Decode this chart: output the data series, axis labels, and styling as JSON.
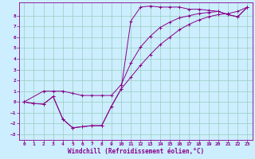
{
  "xlabel": "Windchill (Refroidissement éolien,°C)",
  "bg_color": "#cceeff",
  "grid_color": "#99ccbb",
  "line_color": "#880088",
  "spine_color": "#880088",
  "xlim": [
    -0.5,
    23.5
  ],
  "ylim": [
    -3.5,
    9.2
  ],
  "xticks": [
    0,
    1,
    2,
    3,
    4,
    5,
    6,
    7,
    8,
    9,
    10,
    11,
    12,
    13,
    14,
    15,
    16,
    17,
    18,
    19,
    20,
    21,
    22,
    23
  ],
  "yticks": [
    -3,
    -2,
    -1,
    0,
    1,
    2,
    3,
    4,
    5,
    6,
    7,
    8
  ],
  "line1_x": [
    0,
    1,
    2,
    3,
    4,
    5,
    6,
    7,
    8,
    9,
    10,
    11,
    12,
    13,
    14,
    15,
    16,
    17,
    18,
    19,
    20,
    21,
    22,
    23
  ],
  "line1_y": [
    0,
    -0.15,
    -0.2,
    0.5,
    -1.6,
    -2.4,
    -2.3,
    -2.2,
    -2.2,
    -0.4,
    1.2,
    7.5,
    8.8,
    8.9,
    8.8,
    8.8,
    8.8,
    8.6,
    8.6,
    8.5,
    8.4,
    8.1,
    7.9,
    8.8
  ],
  "line2_x": [
    0,
    1,
    2,
    3,
    4,
    5,
    6,
    7,
    8,
    9,
    10,
    11,
    12,
    13,
    14,
    15,
    16,
    17,
    18,
    19,
    20,
    21,
    22,
    23
  ],
  "line2_y": [
    0,
    -0.15,
    -0.2,
    0.5,
    -1.6,
    -2.4,
    -2.3,
    -2.2,
    -2.2,
    -0.4,
    1.2,
    2.3,
    3.4,
    4.4,
    5.3,
    6.0,
    6.7,
    7.2,
    7.6,
    7.9,
    8.1,
    8.2,
    8.4,
    8.8
  ],
  "line3_x": [
    0,
    2,
    3,
    4,
    5,
    6,
    7,
    8,
    9,
    10,
    11,
    12,
    13,
    14,
    15,
    16,
    17,
    18,
    19,
    20,
    21,
    22,
    23
  ],
  "line3_y": [
    0,
    1.0,
    1.0,
    1.0,
    0.8,
    0.6,
    0.6,
    0.6,
    0.6,
    1.6,
    3.6,
    5.1,
    6.1,
    6.9,
    7.4,
    7.8,
    8.0,
    8.2,
    8.3,
    8.4,
    8.1,
    7.9,
    8.8
  ],
  "xlabel_fontsize": 5.5,
  "tick_fontsize": 4.5
}
